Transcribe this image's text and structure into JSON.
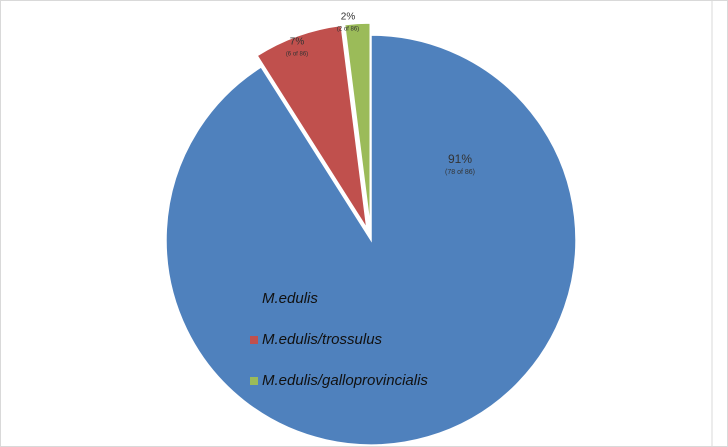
{
  "chart_data": {
    "type": "pie",
    "categories": [
      "M.edulis",
      "M.edulis/trossulus",
      "M.edulis/galloprovincialis"
    ],
    "values": [
      91,
      7,
      2
    ],
    "value_labels": [
      "91%",
      "7%",
      "2%"
    ],
    "count_labels": [
      "(78 of 86)",
      "(6 of 86)",
      "(2 of 86)"
    ],
    "colors": [
      "#4f81bd",
      "#c0504d",
      "#9bbb59"
    ],
    "exploded": [
      false,
      true,
      true
    ],
    "legend": "inside-left"
  }
}
